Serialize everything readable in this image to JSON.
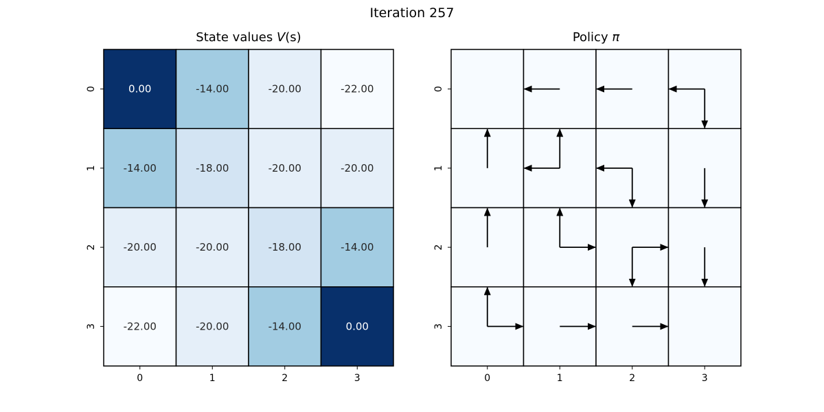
{
  "figure": {
    "suptitle": "Iteration 257"
  },
  "chart_data": [
    {
      "type": "heatmap",
      "title_text": "State values ",
      "title_math": "V",
      "title_suffix": "(s)",
      "x_ticks": [
        "0",
        "1",
        "2",
        "3"
      ],
      "y_ticks": [
        "0",
        "1",
        "2",
        "3"
      ],
      "values": [
        [
          0.0,
          -14.0,
          -20.0,
          -22.0
        ],
        [
          -14.0,
          -18.0,
          -20.0,
          -20.0
        ],
        [
          -20.0,
          -20.0,
          -18.0,
          -14.0
        ],
        [
          -22.0,
          -20.0,
          -14.0,
          0.0
        ]
      ],
      "value_labels": [
        [
          "0.00",
          "-14.00",
          "-20.00",
          "-22.00"
        ],
        [
          "-14.00",
          "-18.00",
          "-20.00",
          "-20.00"
        ],
        [
          "-20.00",
          "-20.00",
          "-18.00",
          "-14.00"
        ],
        [
          "-22.00",
          "-20.00",
          "-14.00",
          "0.00"
        ]
      ],
      "colormap": "Blues",
      "grid": true
    },
    {
      "type": "heatmap",
      "title_text": "Policy ",
      "title_math": "π",
      "x_ticks": [
        "0",
        "1",
        "2",
        "3"
      ],
      "y_ticks": [
        "0",
        "1",
        "2",
        "3"
      ],
      "policy": [
        [
          [],
          [
            "left"
          ],
          [
            "left"
          ],
          [
            "left",
            "down"
          ]
        ],
        [
          [
            "up"
          ],
          [
            "up",
            "left"
          ],
          [
            "left",
            "down"
          ],
          [
            "down"
          ]
        ],
        [
          [
            "up"
          ],
          [
            "up",
            "right"
          ],
          [
            "right",
            "down"
          ],
          [
            "down"
          ]
        ],
        [
          [
            "up",
            "right"
          ],
          [
            "right"
          ],
          [
            "right"
          ],
          []
        ]
      ],
      "cell_color": "#f7fbff",
      "grid": true
    }
  ]
}
